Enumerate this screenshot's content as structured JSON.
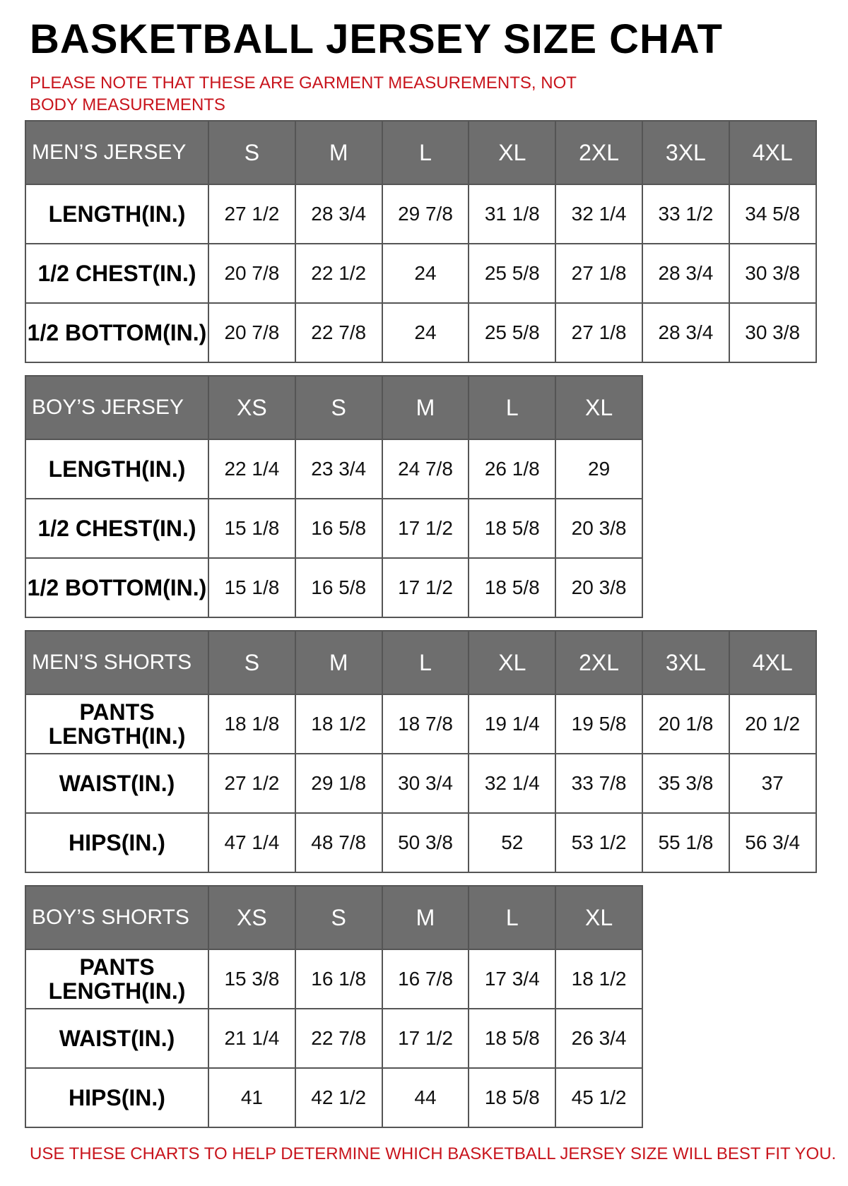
{
  "title": "BASKETBALL JERSEY SIZE CHAT",
  "note": "PLEASE NOTE THAT THESE ARE GARMENT MEASUREMENTS, NOT BODY MEASUREMENTS",
  "footer": "USE THESE CHARTS TO HELP DETERMINE WHICH BASKETBALL JERSEY SIZE WILL BEST FIT YOU.",
  "colors": {
    "header_bg": "#6e6e6e",
    "note_red": "#c8141c"
  },
  "tables": [
    {
      "heading": "MEN’S JERSEY",
      "sizes": [
        "S",
        "M",
        "L",
        "XL",
        "2XL",
        "3XL",
        "4XL"
      ],
      "rows": [
        {
          "label": "LENGTH(IN.)",
          "values": [
            "27 1/2",
            "28 3/4",
            "29 7/8",
            "31 1/8",
            "32 1/4",
            "33 1/2",
            "34 5/8"
          ]
        },
        {
          "label": "1/2 CHEST(IN.)",
          "values": [
            "20 7/8",
            "22 1/2",
            "24",
            "25 5/8",
            "27 1/8",
            "28 3/4",
            "30 3/8"
          ]
        },
        {
          "label": "1/2 BOTTOM(IN.)",
          "values": [
            "20 7/8",
            "22 7/8",
            "24",
            "25 5/8",
            "27 1/8",
            "28 3/4",
            "30 3/8"
          ]
        }
      ]
    },
    {
      "heading": "BOY’S JERSEY",
      "sizes": [
        "XS",
        "S",
        "M",
        "L",
        "XL"
      ],
      "rows": [
        {
          "label": "LENGTH(IN.)",
          "values": [
            "22 1/4",
            "23 3/4",
            "24 7/8",
            "26 1/8",
            "29"
          ]
        },
        {
          "label": "1/2 CHEST(IN.)",
          "values": [
            "15 1/8",
            "16 5/8",
            "17 1/2",
            "18 5/8",
            "20 3/8"
          ]
        },
        {
          "label": "1/2 BOTTOM(IN.)",
          "values": [
            "15 1/8",
            "16 5/8",
            "17 1/2",
            "18 5/8",
            "20 3/8"
          ]
        }
      ]
    },
    {
      "heading": "MEN’S SHORTS",
      "sizes": [
        "S",
        "M",
        "L",
        "XL",
        "2XL",
        "3XL",
        "4XL"
      ],
      "rows": [
        {
          "label": "PANTS LENGTH(IN.)",
          "values": [
            "18 1/8",
            "18 1/2",
            "18 7/8",
            "19 1/4",
            "19 5/8",
            "20 1/8",
            "20 1/2"
          ]
        },
        {
          "label": "WAIST(IN.)",
          "values": [
            "27 1/2",
            "29 1/8",
            "30 3/4",
            "32 1/4",
            "33 7/8",
            "35 3/8",
            "37"
          ]
        },
        {
          "label": "HIPS(IN.)",
          "values": [
            "47 1/4",
            "48 7/8",
            "50 3/8",
            "52",
            "53 1/2",
            "55 1/8",
            "56 3/4"
          ]
        }
      ]
    },
    {
      "heading": "BOY’S SHORTS",
      "sizes": [
        "XS",
        "S",
        "M",
        "L",
        "XL"
      ],
      "rows": [
        {
          "label": "PANTS LENGTH(IN.)",
          "values": [
            "15 3/8",
            "16 1/8",
            "16 7/8",
            "17 3/4",
            "18 1/2"
          ]
        },
        {
          "label": "WAIST(IN.)",
          "values": [
            "21 1/4",
            "22 7/8",
            "17 1/2",
            "18 5/8",
            "26 3/4"
          ]
        },
        {
          "label": "HIPS(IN.)",
          "values": [
            "41",
            "42 1/2",
            "44",
            "18 5/8",
            "45 1/2"
          ]
        }
      ]
    }
  ]
}
